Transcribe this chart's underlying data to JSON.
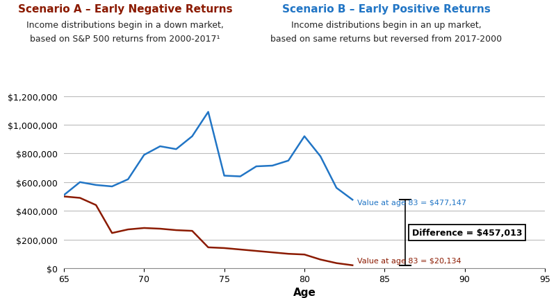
{
  "title_a": "Scenario A – Early Negative Returns",
  "subtitle_a1": "Income distributions begin in a down market,",
  "subtitle_a2": "based on S&P 500 returns from 2000-2017¹",
  "title_b": "Scenario B – Early Positive Returns",
  "subtitle_b1": "Income distributions begin in an up market,",
  "subtitle_b2": "based on same returns but reversed from 2017-2000",
  "xlabel": "Age",
  "color_a": "#8B1A00",
  "color_b": "#2175C5",
  "title_a_color": "#8B1A00",
  "title_b_color": "#2175C5",
  "subtitle_color": "#222222",
  "ages_a": [
    65,
    66,
    67,
    68,
    69,
    70,
    71,
    72,
    73,
    74,
    75,
    76,
    77,
    78,
    79,
    80,
    81,
    82,
    83
  ],
  "values_a": [
    500000,
    490000,
    440000,
    245000,
    270000,
    280000,
    275000,
    265000,
    260000,
    145000,
    140000,
    130000,
    120000,
    110000,
    100000,
    95000,
    60000,
    35000,
    20134
  ],
  "ages_b": [
    65,
    66,
    67,
    68,
    69,
    70,
    71,
    72,
    73,
    74,
    75,
    76,
    77,
    78,
    79,
    80,
    81,
    82,
    83
  ],
  "values_b": [
    510000,
    600000,
    580000,
    570000,
    620000,
    790000,
    850000,
    830000,
    920000,
    1090000,
    645000,
    640000,
    710000,
    715000,
    750000,
    920000,
    780000,
    560000,
    477147
  ],
  "value_a_at_83": 20134,
  "value_b_at_83": 477147,
  "difference": 457013,
  "bracket_x": 86.3,
  "ylim": [
    0,
    1250000
  ],
  "yticks": [
    0,
    200000,
    400000,
    600000,
    800000,
    1000000,
    1200000
  ],
  "xticks": [
    65,
    70,
    75,
    80,
    85,
    90,
    95
  ],
  "background_color": "#FFFFFF",
  "grid_color": "#BBBBBB",
  "line_width": 1.8
}
